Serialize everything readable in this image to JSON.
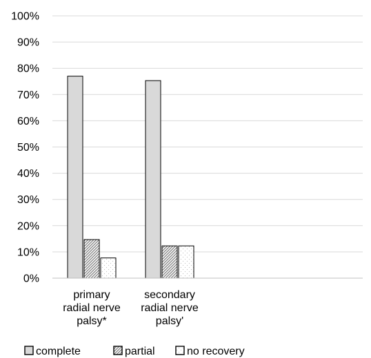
{
  "chart_data": {
    "type": "bar",
    "title": "",
    "xlabel": "",
    "ylabel": "",
    "ylim": [
      0,
      100
    ],
    "yticks": [
      "0%",
      "10%",
      "20%",
      "30%",
      "40%",
      "50%",
      "60%",
      "70%",
      "80%",
      "90%",
      "100%"
    ],
    "grid": true,
    "legend_position": "bottom-left",
    "categories": [
      [
        "primary",
        "radial nerve",
        "palsy*"
      ],
      [
        "secondary",
        "radial nerve",
        "palsy'"
      ]
    ],
    "series": [
      {
        "name": "complete",
        "values": [
          77,
          75.3
        ],
        "pattern": "solid-gray",
        "color": "#d9d9d9"
      },
      {
        "name": "partial",
        "values": [
          14.7,
          12.3
        ],
        "pattern": "diagonal-hatch",
        "color": "#a6a6a6"
      },
      {
        "name": "no recovery",
        "values": [
          7.7,
          12.3
        ],
        "pattern": "light-dots",
        "color": "#ffffff"
      }
    ]
  }
}
